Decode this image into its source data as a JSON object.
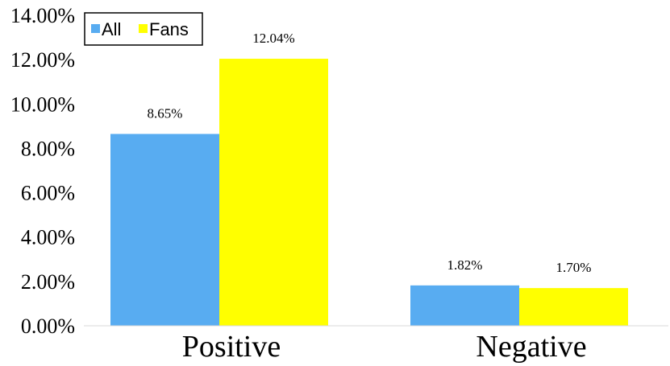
{
  "chart_data": {
    "type": "bar",
    "categories": [
      "Positive",
      "Negative"
    ],
    "series": [
      {
        "name": "All",
        "values": [
          8.65,
          1.82
        ],
        "labels": [
          "8.65%",
          "1.82%"
        ],
        "color": "#58ACF1"
      },
      {
        "name": "Fans",
        "values": [
          12.04,
          1.7
        ],
        "labels": [
          "12.04%",
          "1.70%"
        ],
        "color": "#FFFF00"
      }
    ],
    "ylim": [
      0,
      14
    ],
    "yticks": [
      0,
      2,
      4,
      6,
      8,
      10,
      12,
      14
    ],
    "ytick_labels": [
      "0.00%",
      "2.00%",
      "4.00%",
      "6.00%",
      "8.00%",
      "10.00%",
      "12.00%",
      "14.00%"
    ],
    "title": "",
    "xlabel": "",
    "ylabel": "",
    "grid": false,
    "legend_position": "top-left"
  }
}
